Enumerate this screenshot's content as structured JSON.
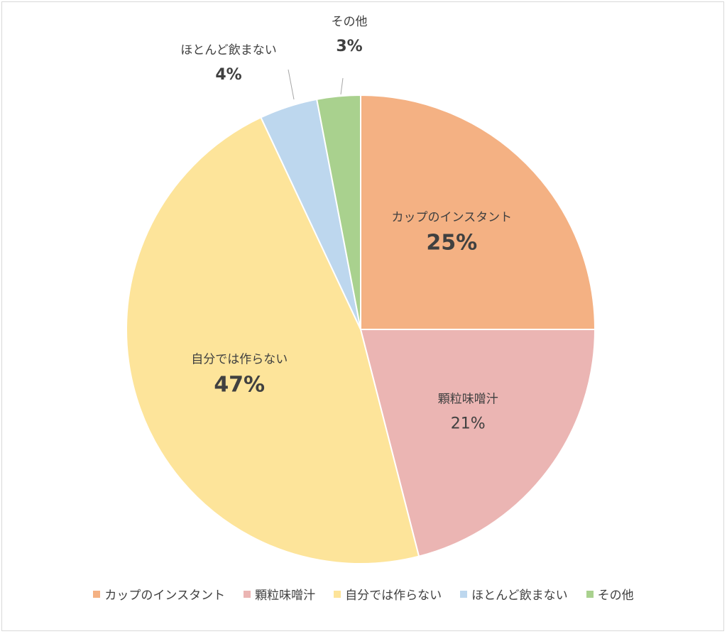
{
  "chart_data": {
    "type": "pie",
    "title": "",
    "slices": [
      {
        "label": "カップのインスタント",
        "value": 25,
        "display": "25%",
        "color": "#f4b183"
      },
      {
        "label": "顆粒味噌汁",
        "value": 21,
        "display": "21%",
        "color": "#ebb5b3"
      },
      {
        "label": "自分では作らない",
        "value": 47,
        "display": "47%",
        "color": "#fde49a"
      },
      {
        "label": "ほとんど飲まない",
        "value": 4,
        "display": "4%",
        "color": "#bdd7ee"
      },
      {
        "label": "その他",
        "value": 3,
        "display": "3%",
        "color": "#a9d18e"
      }
    ],
    "start_angle": "12 o'clock",
    "direction": "clockwise",
    "legend_position": "bottom"
  }
}
